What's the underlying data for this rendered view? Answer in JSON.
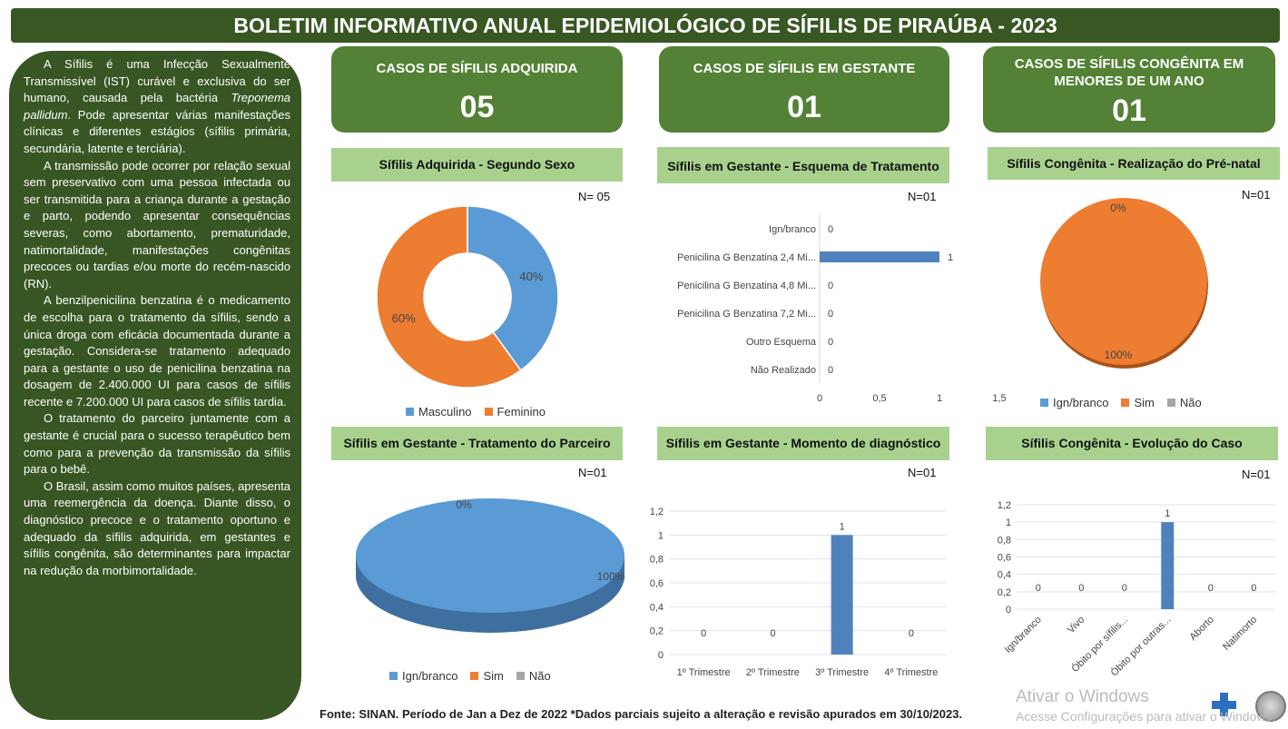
{
  "title": "BOLETIM INFORMATIVO ANUAL EPIDEMIOLÓGICO DE SÍFILIS DE PIRAÚBA - 2023",
  "sidebar": {
    "p1a": "A Sífilis é uma Infecção Sexualmente Transmissível (IST) curável e exclusiva do ser humano, causada pela bactéria ",
    "p1i": "Treponema pallidum",
    "p1b": ". Pode apresentar várias manifestações clínicas e diferentes estágios (sífilis primária, secundária, latente e terciária).",
    "p2": "A transmissão pode ocorrer por relação sexual sem preservativo com uma pessoa infectada ou ser transmitida para a criança durante a gestação e parto, podendo apresentar consequências severas, como abortamento, prematuridade, natimortalidade, manifestações congênitas precoces ou tardias e/ou morte do recém-nascido (RN).",
    "p3": "A benzilpenicilina benzatina é o medicamento de escolha para o tratamento da sífilis, sendo a única droga com eficácia documentada durante a gestação. Considera-se tratamento adequado para a gestante o uso de penicilina benzatina na dosagem de 2.400.000 UI para casos de sífilis recente e 7.200.000 UI para casos de sífilis tardia.",
    "p4": "O tratamento do parceiro juntamente com a gestante é crucial para o sucesso terapêutico bem como para a prevenção da transmissão da sífilis para o bebê.",
    "p5": "O Brasil, assim como muitos países, apresenta uma reemergência da doença. Diante disso, o diagnóstico precoce e o tratamento oportuno e adequado da sífilis adquirida, em gestantes e sífilis congênita, são determinantes para impactar na redução da morbimortalidade."
  },
  "kpis": [
    {
      "label": "CASOS DE SÍFILIS ADQUIRIDA",
      "value": "05"
    },
    {
      "label": "CASOS DE SÍFILIS EM GESTANTE",
      "value": "01"
    },
    {
      "label": "CASOS DE SÍFILIS CONGÊNITA EM MENORES DE UM ANO",
      "value": "01"
    }
  ],
  "colors": {
    "blue": "#5b9bd5",
    "orange": "#ed7d31",
    "gray": "#a5a5a5",
    "bar": "#4f81bd"
  },
  "chart_data": [
    {
      "type": "pie",
      "id": "sexo",
      "title": "Sífilis Adquirida - Segundo Sexo",
      "n": "N= 05",
      "donut": true,
      "categories": [
        "Masculino",
        "Feminino"
      ],
      "values": [
        40,
        60
      ],
      "labels": [
        "40%",
        "60%"
      ]
    },
    {
      "type": "bar",
      "id": "esquema",
      "orientation": "horizontal",
      "title": "Sífilis em Gestante - Esquema de Tratamento",
      "n": "N=01",
      "categories": [
        "Ign/branco",
        "Penicilina G Benzatina 2,4 Mi...",
        "Penicilina G Benzatina 4,8 Mi...",
        "Penicilina G Benzatina 7,2 Mi...",
        "Outro Esquema",
        "Não Realizado"
      ],
      "values": [
        0,
        1,
        0,
        0,
        0,
        0
      ],
      "xlim": [
        0,
        1.5
      ],
      "ticks": [
        "0",
        "0,5",
        "1",
        "1,5"
      ]
    },
    {
      "type": "pie",
      "id": "prenatal",
      "title": "Sífilis Congênita - Realização do Pré-natal",
      "n": "N=01",
      "categories": [
        "Ign/branco",
        "Sim",
        "Não"
      ],
      "values": [
        0,
        100,
        0
      ],
      "labels": [
        "0%",
        "100%"
      ]
    },
    {
      "type": "pie",
      "id": "parceiro",
      "title": "Sífilis em Gestante - Tratamento do Parceiro",
      "n": "N=01",
      "categories": [
        "Ign/branco",
        "Sim",
        "Não"
      ],
      "values": [
        100,
        0,
        0
      ],
      "labels": [
        "100%",
        "0%"
      ]
    },
    {
      "type": "bar",
      "id": "momento",
      "title": "Sífilis em Gestante - Momento de diagnóstico",
      "n": "N=01",
      "categories": [
        "1º Trimestre",
        "2º Trimestre",
        "3º Trimestre",
        "4º Trimestre"
      ],
      "values": [
        0,
        0,
        1,
        0
      ],
      "ylim": [
        0,
        1.2
      ],
      "ticks": [
        "0",
        "0,2",
        "0,4",
        "0,6",
        "0,8",
        "1",
        "1,2"
      ]
    },
    {
      "type": "bar",
      "id": "evolucao",
      "title": "Sífilis Congênita - Evolução do Caso",
      "n": "N=01",
      "categories": [
        "Ign/branco",
        "Vivo",
        "Óbito por sífilis...",
        "Óbito por outras...",
        "Aborto",
        "Natimorto"
      ],
      "values": [
        0,
        0,
        0,
        1,
        0,
        0
      ],
      "ylim": [
        0,
        1.2
      ],
      "ticks": [
        "0",
        "0,2",
        "0,4",
        "0,6",
        "0,8",
        "1",
        "1,2"
      ]
    }
  ],
  "footer": "Fonte: SINAN. Período de Jan a Dez de 2022 *Dados parciais sujeito a alteração e revisão apurados em 30/10/2023.",
  "watermark": {
    "line1": "Ativar o Windows",
    "line2": "Acesse Configurações para ativar o Windows."
  },
  "logos": {
    "sus": "SUS"
  }
}
